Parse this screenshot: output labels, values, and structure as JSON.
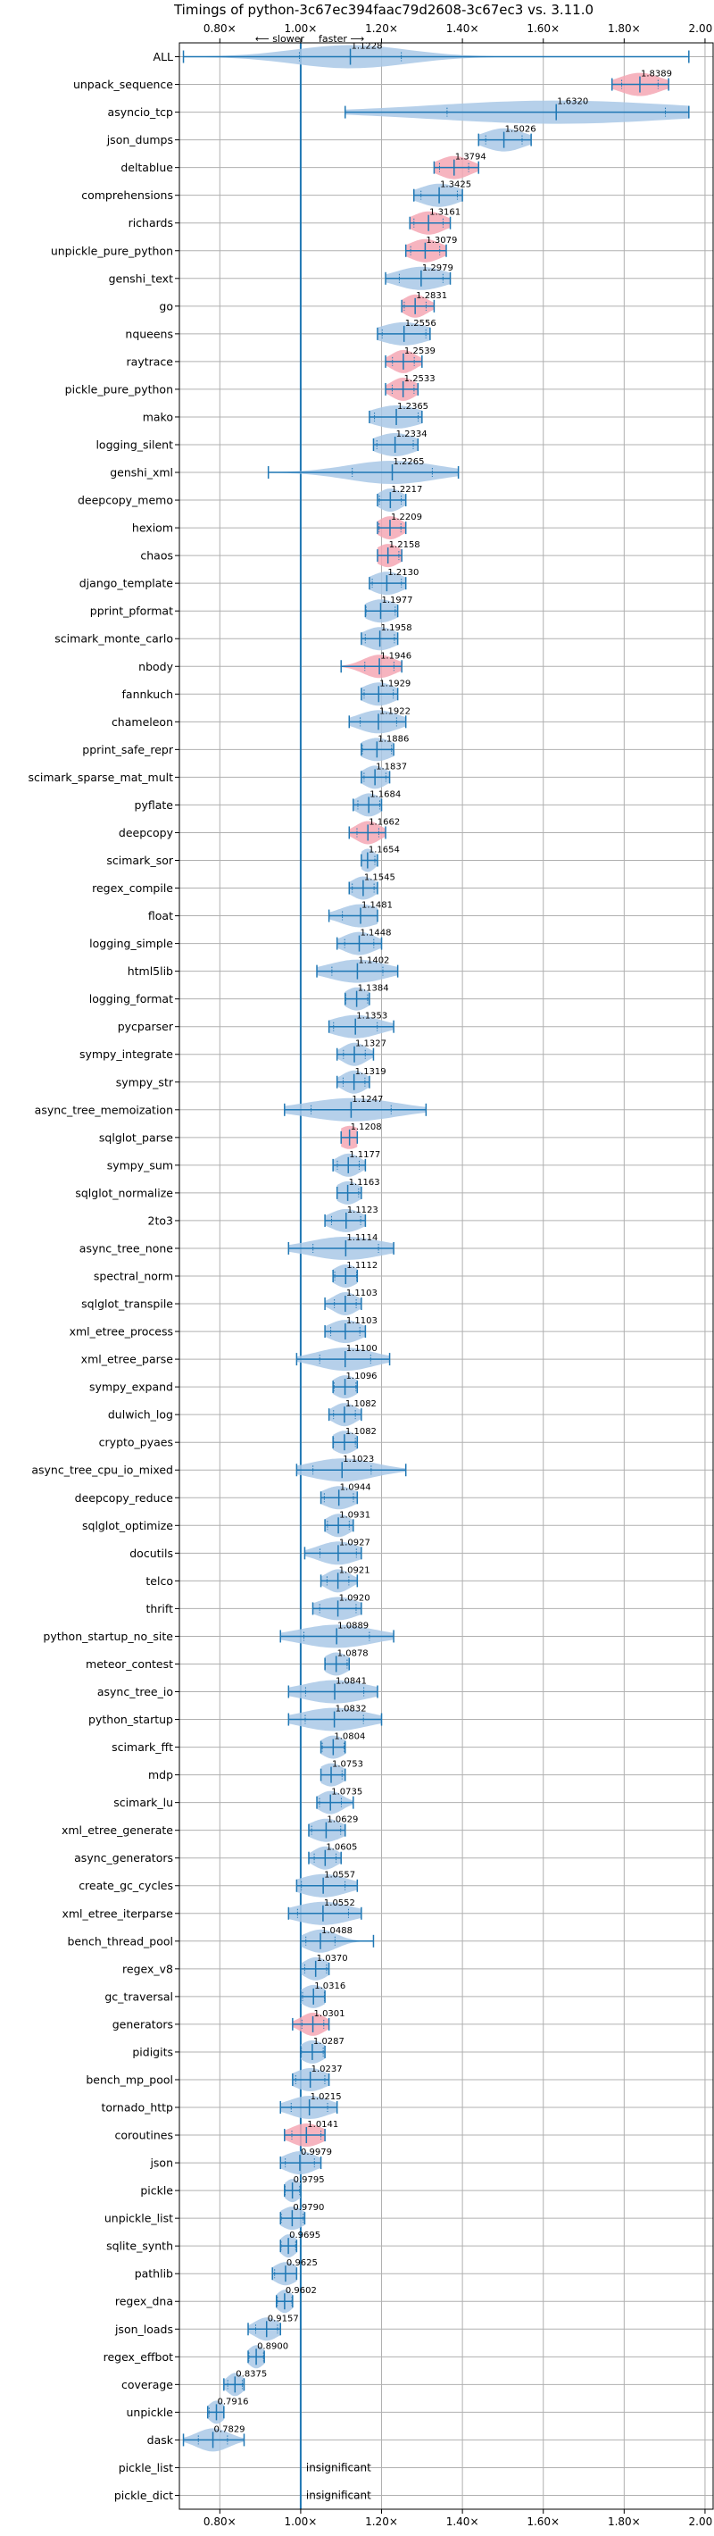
{
  "chart_data": {
    "type": "violin",
    "title": "Timings of python-3c67ec394faac79d2608-3c67ec3 vs. 3.11.0",
    "direction_slower": "⟵ slower",
    "direction_faster": "faster ⟶",
    "xlim": [
      0.7,
      2.02
    ],
    "xticks": [
      0.8,
      1.0,
      1.2,
      1.4,
      1.6,
      1.8,
      2.0
    ],
    "xtick_labels": [
      "0.80×",
      "1.00×",
      "1.20×",
      "1.40×",
      "1.60×",
      "1.80×",
      "2.00×"
    ],
    "grid": true,
    "insignificant_label": "insignificant",
    "colors": {
      "normal": "#a9c8e6",
      "significant": "#f4a7b4",
      "line": "#1f77b4"
    },
    "benchmarks": [
      {
        "name": "ALL",
        "median": 1.1228,
        "label": "1.1228",
        "lo": 0.71,
        "hi": 1.96,
        "spread": 0.14,
        "sig": false
      },
      {
        "name": "unpack_sequence",
        "median": 1.8389,
        "label": "1.8389",
        "lo": 1.77,
        "hi": 1.91,
        "spread": 0.05,
        "sig": true
      },
      {
        "name": "asyncio_tcp",
        "median": 1.632,
        "label": "1.6320",
        "lo": 1.11,
        "hi": 1.96,
        "spread": 0.3,
        "sig": false
      },
      {
        "name": "json_dumps",
        "median": 1.5026,
        "label": "1.5026",
        "lo": 1.44,
        "hi": 1.57,
        "spread": 0.05,
        "sig": false
      },
      {
        "name": "deltablue",
        "median": 1.3794,
        "label": "1.3794",
        "lo": 1.33,
        "hi": 1.44,
        "spread": 0.04,
        "sig": true
      },
      {
        "name": "comprehensions",
        "median": 1.3425,
        "label": "1.3425",
        "lo": 1.28,
        "hi": 1.4,
        "spread": 0.05,
        "sig": false
      },
      {
        "name": "richards",
        "median": 1.3161,
        "label": "1.3161",
        "lo": 1.27,
        "hi": 1.37,
        "spread": 0.04,
        "sig": true
      },
      {
        "name": "unpickle_pure_python",
        "median": 1.3079,
        "label": "1.3079",
        "lo": 1.26,
        "hi": 1.36,
        "spread": 0.04,
        "sig": true
      },
      {
        "name": "genshi_text",
        "median": 1.2979,
        "label": "1.2979",
        "lo": 1.21,
        "hi": 1.37,
        "spread": 0.06,
        "sig": false
      },
      {
        "name": "go",
        "median": 1.2831,
        "label": "1.2831",
        "lo": 1.25,
        "hi": 1.33,
        "spread": 0.03,
        "sig": true
      },
      {
        "name": "nqueens",
        "median": 1.2556,
        "label": "1.2556",
        "lo": 1.19,
        "hi": 1.32,
        "spread": 0.06,
        "sig": false
      },
      {
        "name": "raytrace",
        "median": 1.2539,
        "label": "1.2539",
        "lo": 1.21,
        "hi": 1.3,
        "spread": 0.03,
        "sig": true
      },
      {
        "name": "pickle_pure_python",
        "median": 1.2533,
        "label": "1.2533",
        "lo": 1.21,
        "hi": 1.29,
        "spread": 0.03,
        "sig": true
      },
      {
        "name": "mako",
        "median": 1.2365,
        "label": "1.2365",
        "lo": 1.17,
        "hi": 1.3,
        "spread": 0.06,
        "sig": false
      },
      {
        "name": "logging_silent",
        "median": 1.2334,
        "label": "1.2334",
        "lo": 1.18,
        "hi": 1.29,
        "spread": 0.05,
        "sig": false
      },
      {
        "name": "genshi_xml",
        "median": 1.2265,
        "label": "1.2265",
        "lo": 0.92,
        "hi": 1.39,
        "spread": 0.11,
        "sig": false
      },
      {
        "name": "deepcopy_memo",
        "median": 1.2217,
        "label": "1.2217",
        "lo": 1.19,
        "hi": 1.26,
        "spread": 0.03,
        "sig": false
      },
      {
        "name": "hexiom",
        "median": 1.2209,
        "label": "1.2209",
        "lo": 1.19,
        "hi": 1.26,
        "spread": 0.03,
        "sig": true
      },
      {
        "name": "chaos",
        "median": 1.2158,
        "label": "1.2158",
        "lo": 1.19,
        "hi": 1.25,
        "spread": 0.03,
        "sig": true
      },
      {
        "name": "django_template",
        "median": 1.213,
        "label": "1.2130",
        "lo": 1.17,
        "hi": 1.26,
        "spread": 0.04,
        "sig": false
      },
      {
        "name": "pprint_pformat",
        "median": 1.1977,
        "label": "1.1977",
        "lo": 1.16,
        "hi": 1.24,
        "spread": 0.04,
        "sig": false
      },
      {
        "name": "scimark_monte_carlo",
        "median": 1.1958,
        "label": "1.1958",
        "lo": 1.15,
        "hi": 1.24,
        "spread": 0.04,
        "sig": false
      },
      {
        "name": "nbody",
        "median": 1.1946,
        "label": "1.1946",
        "lo": 1.1,
        "hi": 1.25,
        "spread": 0.04,
        "sig": true
      },
      {
        "name": "fannkuch",
        "median": 1.1929,
        "label": "1.1929",
        "lo": 1.15,
        "hi": 1.24,
        "spread": 0.04,
        "sig": false
      },
      {
        "name": "chameleon",
        "median": 1.1922,
        "label": "1.1922",
        "lo": 1.12,
        "hi": 1.26,
        "spread": 0.05,
        "sig": false
      },
      {
        "name": "pprint_safe_repr",
        "median": 1.1886,
        "label": "1.1886",
        "lo": 1.15,
        "hi": 1.23,
        "spread": 0.04,
        "sig": false
      },
      {
        "name": "scimark_sparse_mat_mult",
        "median": 1.1837,
        "label": "1.1837",
        "lo": 1.15,
        "hi": 1.22,
        "spread": 0.03,
        "sig": false
      },
      {
        "name": "pyflate",
        "median": 1.1684,
        "label": "1.1684",
        "lo": 1.13,
        "hi": 1.2,
        "spread": 0.03,
        "sig": false
      },
      {
        "name": "deepcopy",
        "median": 1.1662,
        "label": "1.1662",
        "lo": 1.12,
        "hi": 1.21,
        "spread": 0.03,
        "sig": true
      },
      {
        "name": "scimark_sor",
        "median": 1.1654,
        "label": "1.1654",
        "lo": 1.15,
        "hi": 1.19,
        "spread": 0.02,
        "sig": false
      },
      {
        "name": "regex_compile",
        "median": 1.1545,
        "label": "1.1545",
        "lo": 1.12,
        "hi": 1.19,
        "spread": 0.03,
        "sig": false
      },
      {
        "name": "float",
        "median": 1.1481,
        "label": "1.1481",
        "lo": 1.07,
        "hi": 1.19,
        "spread": 0.05,
        "sig": false
      },
      {
        "name": "logging_simple",
        "median": 1.1448,
        "label": "1.1448",
        "lo": 1.09,
        "hi": 1.2,
        "spread": 0.04,
        "sig": false
      },
      {
        "name": "html5lib",
        "median": 1.1402,
        "label": "1.1402",
        "lo": 1.04,
        "hi": 1.24,
        "spread": 0.07,
        "sig": false
      },
      {
        "name": "logging_format",
        "median": 1.1384,
        "label": "1.1384",
        "lo": 1.11,
        "hi": 1.17,
        "spread": 0.03,
        "sig": false
      },
      {
        "name": "pycparser",
        "median": 1.1353,
        "label": "1.1353",
        "lo": 1.07,
        "hi": 1.23,
        "spread": 0.06,
        "sig": false
      },
      {
        "name": "sympy_integrate",
        "median": 1.1327,
        "label": "1.1327",
        "lo": 1.09,
        "hi": 1.18,
        "spread": 0.03,
        "sig": false
      },
      {
        "name": "sympy_str",
        "median": 1.1319,
        "label": "1.1319",
        "lo": 1.09,
        "hi": 1.17,
        "spread": 0.03,
        "sig": false
      },
      {
        "name": "async_tree_memoization",
        "median": 1.1247,
        "label": "1.1247",
        "lo": 0.96,
        "hi": 1.31,
        "spread": 0.11,
        "sig": false
      },
      {
        "name": "sqlglot_parse",
        "median": 1.1208,
        "label": "1.1208",
        "lo": 1.1,
        "hi": 1.14,
        "spread": 0.03,
        "sig": true
      },
      {
        "name": "sympy_sum",
        "median": 1.1177,
        "label": "1.1177",
        "lo": 1.08,
        "hi": 1.16,
        "spread": 0.03,
        "sig": false
      },
      {
        "name": "sqlglot_normalize",
        "median": 1.1163,
        "label": "1.1163",
        "lo": 1.09,
        "hi": 1.15,
        "spread": 0.03,
        "sig": false
      },
      {
        "name": "2to3",
        "median": 1.1123,
        "label": "1.1123",
        "lo": 1.06,
        "hi": 1.16,
        "spread": 0.04,
        "sig": false
      },
      {
        "name": "async_tree_none",
        "median": 1.1114,
        "label": "1.1114",
        "lo": 0.97,
        "hi": 1.23,
        "spread": 0.09,
        "sig": false
      },
      {
        "name": "spectral_norm",
        "median": 1.1112,
        "label": "1.1112",
        "lo": 1.08,
        "hi": 1.14,
        "spread": 0.03,
        "sig": false
      },
      {
        "name": "sqlglot_transpile",
        "median": 1.1103,
        "label": "1.1103",
        "lo": 1.06,
        "hi": 1.15,
        "spread": 0.03,
        "sig": false
      },
      {
        "name": "xml_etree_process",
        "median": 1.1103,
        "label": "1.1103",
        "lo": 1.06,
        "hi": 1.16,
        "spread": 0.04,
        "sig": false
      },
      {
        "name": "xml_etree_parse",
        "median": 1.11,
        "label": "1.1100",
        "lo": 0.99,
        "hi": 1.22,
        "spread": 0.07,
        "sig": false
      },
      {
        "name": "sympy_expand",
        "median": 1.1096,
        "label": "1.1096",
        "lo": 1.08,
        "hi": 1.14,
        "spread": 0.03,
        "sig": false
      },
      {
        "name": "dulwich_log",
        "median": 1.1082,
        "label": "1.1082",
        "lo": 1.07,
        "hi": 1.15,
        "spread": 0.03,
        "sig": false
      },
      {
        "name": "crypto_pyaes",
        "median": 1.1082,
        "label": "1.1082",
        "lo": 1.08,
        "hi": 1.14,
        "spread": 0.03,
        "sig": false
      },
      {
        "name": "async_tree_cpu_io_mixed",
        "median": 1.1023,
        "label": "1.1023",
        "lo": 0.99,
        "hi": 1.26,
        "spread": 0.08,
        "sig": false
      },
      {
        "name": "deepcopy_reduce",
        "median": 1.0944,
        "label": "1.0944",
        "lo": 1.05,
        "hi": 1.14,
        "spread": 0.04,
        "sig": false
      },
      {
        "name": "sqlglot_optimize",
        "median": 1.0931,
        "label": "1.0931",
        "lo": 1.06,
        "hi": 1.13,
        "spread": 0.03,
        "sig": false
      },
      {
        "name": "docutils",
        "median": 1.0927,
        "label": "1.0927",
        "lo": 1.01,
        "hi": 1.15,
        "spread": 0.05,
        "sig": false
      },
      {
        "name": "telco",
        "median": 1.0921,
        "label": "1.0921",
        "lo": 1.05,
        "hi": 1.14,
        "spread": 0.03,
        "sig": false
      },
      {
        "name": "thrift",
        "median": 1.092,
        "label": "1.0920",
        "lo": 1.03,
        "hi": 1.15,
        "spread": 0.05,
        "sig": false
      },
      {
        "name": "python_startup_no_site",
        "median": 1.0889,
        "label": "1.0889",
        "lo": 0.95,
        "hi": 1.23,
        "spread": 0.09,
        "sig": false
      },
      {
        "name": "meteor_contest",
        "median": 1.0878,
        "label": "1.0878",
        "lo": 1.06,
        "hi": 1.12,
        "spread": 0.03,
        "sig": false
      },
      {
        "name": "async_tree_io",
        "median": 1.0841,
        "label": "1.0841",
        "lo": 0.97,
        "hi": 1.19,
        "spread": 0.08,
        "sig": false
      },
      {
        "name": "python_startup",
        "median": 1.0832,
        "label": "1.0832",
        "lo": 0.97,
        "hi": 1.2,
        "spread": 0.08,
        "sig": false
      },
      {
        "name": "scimark_fft",
        "median": 1.0804,
        "label": "1.0804",
        "lo": 1.05,
        "hi": 1.11,
        "spread": 0.03,
        "sig": false
      },
      {
        "name": "mdp",
        "median": 1.0753,
        "label": "1.0753",
        "lo": 1.05,
        "hi": 1.11,
        "spread": 0.03,
        "sig": false
      },
      {
        "name": "scimark_lu",
        "median": 1.0735,
        "label": "1.0735",
        "lo": 1.04,
        "hi": 1.13,
        "spread": 0.03,
        "sig": false
      },
      {
        "name": "xml_etree_generate",
        "median": 1.0629,
        "label": "1.0629",
        "lo": 1.02,
        "hi": 1.11,
        "spread": 0.04,
        "sig": false
      },
      {
        "name": "async_generators",
        "median": 1.0605,
        "label": "1.0605",
        "lo": 1.02,
        "hi": 1.1,
        "spread": 0.03,
        "sig": false
      },
      {
        "name": "create_gc_cycles",
        "median": 1.0557,
        "label": "1.0557",
        "lo": 0.99,
        "hi": 1.14,
        "spread": 0.06,
        "sig": false
      },
      {
        "name": "xml_etree_iterparse",
        "median": 1.0552,
        "label": "1.0552",
        "lo": 0.97,
        "hi": 1.15,
        "spread": 0.07,
        "sig": false
      },
      {
        "name": "bench_thread_pool",
        "median": 1.0488,
        "label": "1.0488",
        "lo": 1.0,
        "hi": 1.18,
        "spread": 0.04,
        "sig": false
      },
      {
        "name": "regex_v8",
        "median": 1.037,
        "label": "1.0370",
        "lo": 1.0,
        "hi": 1.07,
        "spread": 0.03,
        "sig": false
      },
      {
        "name": "gc_traversal",
        "median": 1.0316,
        "label": "1.0316",
        "lo": 1.0,
        "hi": 1.06,
        "spread": 0.03,
        "sig": false
      },
      {
        "name": "generators",
        "median": 1.0301,
        "label": "1.0301",
        "lo": 0.98,
        "hi": 1.07,
        "spread": 0.03,
        "sig": true
      },
      {
        "name": "pidigits",
        "median": 1.0287,
        "label": "1.0287",
        "lo": 1.0,
        "hi": 1.06,
        "spread": 0.03,
        "sig": false
      },
      {
        "name": "bench_mp_pool",
        "median": 1.0237,
        "label": "1.0237",
        "lo": 0.98,
        "hi": 1.07,
        "spread": 0.04,
        "sig": false
      },
      {
        "name": "tornado_http",
        "median": 1.0215,
        "label": "1.0215",
        "lo": 0.95,
        "hi": 1.09,
        "spread": 0.05,
        "sig": false
      },
      {
        "name": "coroutines",
        "median": 1.0141,
        "label": "1.0141",
        "lo": 0.96,
        "hi": 1.06,
        "spread": 0.04,
        "sig": true
      },
      {
        "name": "json",
        "median": 0.9979,
        "label": "0.9979",
        "lo": 0.95,
        "hi": 1.05,
        "spread": 0.04,
        "sig": false
      },
      {
        "name": "pickle",
        "median": 0.9795,
        "label": "0.9795",
        "lo": 0.96,
        "hi": 1.0,
        "spread": 0.02,
        "sig": false
      },
      {
        "name": "unpickle_list",
        "median": 0.979,
        "label": "0.9790",
        "lo": 0.95,
        "hi": 1.01,
        "spread": 0.03,
        "sig": false
      },
      {
        "name": "sqlite_synth",
        "median": 0.9695,
        "label": "0.9695",
        "lo": 0.95,
        "hi": 0.99,
        "spread": 0.02,
        "sig": false
      },
      {
        "name": "pathlib",
        "median": 0.9625,
        "label": "0.9625",
        "lo": 0.93,
        "hi": 0.99,
        "spread": 0.03,
        "sig": false
      },
      {
        "name": "regex_dna",
        "median": 0.9602,
        "label": "0.9602",
        "lo": 0.94,
        "hi": 0.98,
        "spread": 0.02,
        "sig": false
      },
      {
        "name": "json_loads",
        "median": 0.9157,
        "label": "0.9157",
        "lo": 0.87,
        "hi": 0.95,
        "spread": 0.03,
        "sig": false
      },
      {
        "name": "regex_effbot",
        "median": 0.89,
        "label": "0.8900",
        "lo": 0.87,
        "hi": 0.91,
        "spread": 0.02,
        "sig": false
      },
      {
        "name": "coverage",
        "median": 0.8375,
        "label": "0.8375",
        "lo": 0.81,
        "hi": 0.86,
        "spread": 0.02,
        "sig": false
      },
      {
        "name": "unpickle",
        "median": 0.7916,
        "label": "0.7916",
        "lo": 0.77,
        "hi": 0.81,
        "spread": 0.02,
        "sig": false
      },
      {
        "name": "dask",
        "median": 0.7829,
        "label": "0.7829",
        "lo": 0.71,
        "hi": 0.86,
        "spread": 0.04,
        "sig": false
      },
      {
        "name": "pickle_list",
        "median": null,
        "label": "",
        "lo": null,
        "hi": null,
        "spread": 0,
        "sig": false
      },
      {
        "name": "pickle_dict",
        "median": null,
        "label": "",
        "lo": null,
        "hi": null,
        "spread": 0,
        "sig": false
      }
    ]
  }
}
